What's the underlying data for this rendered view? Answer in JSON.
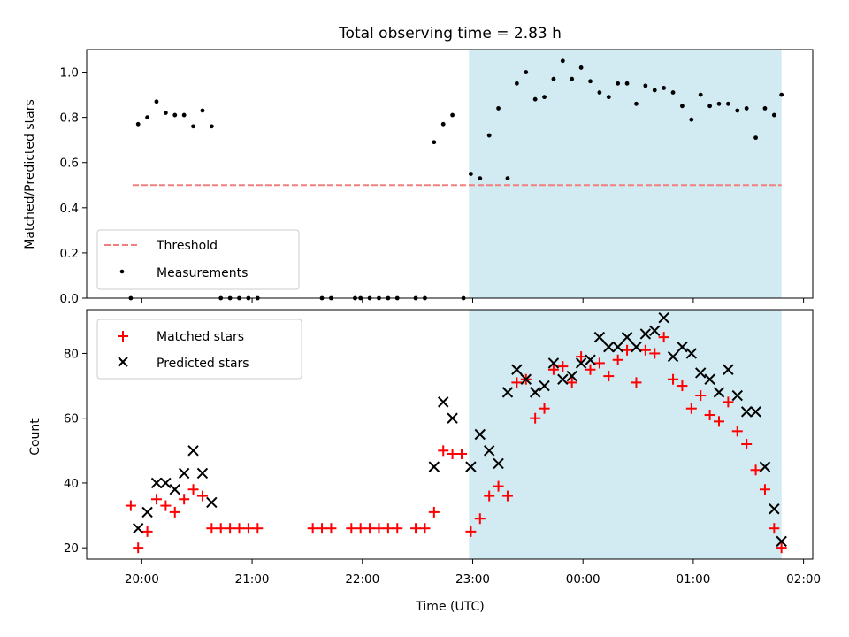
{
  "chart_data": [
    {
      "type": "scatter",
      "title": "Total observing time = 2.83 h",
      "xlabel": "",
      "ylabel": "Matched/Predicted stars",
      "ylim": [
        0,
        1.1
      ],
      "yticks": [
        0.0,
        0.2,
        0.4,
        0.6,
        0.8,
        1.0
      ],
      "ytick_labels": [
        "0.0",
        "0.2",
        "0.4",
        "0.6",
        "0.8",
        "1.0"
      ],
      "grid": false,
      "legend_position": "lower-left",
      "shaded_interval": {
        "start": "22:58",
        "end": "01:48",
        "color": "#add8e6"
      },
      "threshold": {
        "name": "Threshold",
        "value": 0.5,
        "x_start": "19:55",
        "x_end": "01:48",
        "style": "dashed",
        "color": "#f08080"
      },
      "series": [
        {
          "name": "Measurements",
          "color": "#000000",
          "marker": "dot",
          "points": [
            [
              "19:54",
              0.0
            ],
            [
              "19:58",
              0.77
            ],
            [
              "20:03",
              0.8
            ],
            [
              "20:08",
              0.87
            ],
            [
              "20:13",
              0.82
            ],
            [
              "20:18",
              0.81
            ],
            [
              "20:23",
              0.81
            ],
            [
              "20:28",
              0.76
            ],
            [
              "20:33",
              0.83
            ],
            [
              "20:38",
              0.76
            ],
            [
              "20:43",
              0.0
            ],
            [
              "20:48",
              0.0
            ],
            [
              "20:53",
              0.0
            ],
            [
              "20:58",
              0.0
            ],
            [
              "21:03",
              0.0
            ],
            [
              "21:38",
              0.0
            ],
            [
              "21:43",
              0.0
            ],
            [
              "21:56",
              0.0
            ],
            [
              "21:59",
              0.0
            ],
            [
              "22:04",
              0.0
            ],
            [
              "22:09",
              0.0
            ],
            [
              "22:14",
              0.0
            ],
            [
              "22:19",
              0.0
            ],
            [
              "22:29",
              0.0
            ],
            [
              "22:34",
              0.0
            ],
            [
              "22:39",
              0.69
            ],
            [
              "22:44",
              0.77
            ],
            [
              "22:49",
              0.81
            ],
            [
              "22:55",
              0.0
            ],
            [
              "22:59",
              0.55
            ],
            [
              "23:04",
              0.53
            ],
            [
              "23:09",
              0.72
            ],
            [
              "23:14",
              0.84
            ],
            [
              "23:19",
              0.53
            ],
            [
              "23:24",
              0.95
            ],
            [
              "23:29",
              1.0
            ],
            [
              "23:34",
              0.88
            ],
            [
              "23:39",
              0.89
            ],
            [
              "23:44",
              0.97
            ],
            [
              "23:49",
              1.05
            ],
            [
              "23:54",
              0.97
            ],
            [
              "23:59",
              1.02
            ],
            [
              "00:04",
              0.96
            ],
            [
              "00:09",
              0.91
            ],
            [
              "00:14",
              0.89
            ],
            [
              "00:19",
              0.95
            ],
            [
              "00:24",
              0.95
            ],
            [
              "00:29",
              0.86
            ],
            [
              "00:34",
              0.94
            ],
            [
              "00:39",
              0.92
            ],
            [
              "00:44",
              0.93
            ],
            [
              "00:49",
              0.91
            ],
            [
              "00:54",
              0.85
            ],
            [
              "00:59",
              0.79
            ],
            [
              "01:04",
              0.9
            ],
            [
              "01:09",
              0.85
            ],
            [
              "01:14",
              0.86
            ],
            [
              "01:19",
              0.86
            ],
            [
              "01:24",
              0.83
            ],
            [
              "01:29",
              0.84
            ],
            [
              "01:34",
              0.71
            ],
            [
              "01:39",
              0.84
            ],
            [
              "01:44",
              0.81
            ],
            [
              "01:48",
              0.9
            ]
          ]
        }
      ]
    },
    {
      "type": "scatter",
      "title": "",
      "xlabel": "Time (UTC)",
      "ylabel": "Count",
      "ylim": [
        16.5,
        93.5
      ],
      "yticks": [
        20,
        40,
        60,
        80
      ],
      "ytick_labels": [
        "20",
        "40",
        "60",
        "80"
      ],
      "xticks": [
        "20:00",
        "21:00",
        "22:00",
        "23:00",
        "00:00",
        "01:00",
        "02:00"
      ],
      "xlim": [
        "19:30",
        "02:05"
      ],
      "grid": false,
      "legend_position": "upper-left",
      "shaded_interval": {
        "start": "22:58",
        "end": "01:48",
        "color": "#add8e6"
      },
      "series": [
        {
          "name": "Matched stars",
          "color": "#ff0000",
          "marker": "plus",
          "points": [
            [
              "19:54",
              33
            ],
            [
              "19:58",
              20
            ],
            [
              "20:03",
              25
            ],
            [
              "20:08",
              35
            ],
            [
              "20:13",
              33
            ],
            [
              "20:18",
              31
            ],
            [
              "20:23",
              35
            ],
            [
              "20:28",
              38
            ],
            [
              "20:33",
              36
            ],
            [
              "20:38",
              26
            ],
            [
              "20:43",
              26
            ],
            [
              "20:48",
              26
            ],
            [
              "20:53",
              26
            ],
            [
              "20:58",
              26
            ],
            [
              "21:03",
              26
            ],
            [
              "21:33",
              26
            ],
            [
              "21:38",
              26
            ],
            [
              "21:43",
              26
            ],
            [
              "21:54",
              26
            ],
            [
              "21:59",
              26
            ],
            [
              "22:04",
              26
            ],
            [
              "22:09",
              26
            ],
            [
              "22:14",
              26
            ],
            [
              "22:19",
              26
            ],
            [
              "22:29",
              26
            ],
            [
              "22:34",
              26
            ],
            [
              "22:39",
              31
            ],
            [
              "22:44",
              50
            ],
            [
              "22:49",
              49
            ],
            [
              "22:54",
              49
            ],
            [
              "22:59",
              25
            ],
            [
              "23:04",
              29
            ],
            [
              "23:09",
              36
            ],
            [
              "23:14",
              39
            ],
            [
              "23:19",
              36
            ],
            [
              "23:24",
              71
            ],
            [
              "23:29",
              72
            ],
            [
              "23:34",
              60
            ],
            [
              "23:39",
              63
            ],
            [
              "23:44",
              75
            ],
            [
              "23:49",
              76
            ],
            [
              "23:54",
              71
            ],
            [
              "23:59",
              79
            ],
            [
              "00:04",
              75
            ],
            [
              "00:09",
              77
            ],
            [
              "00:14",
              73
            ],
            [
              "00:19",
              78
            ],
            [
              "00:24",
              81
            ],
            [
              "00:29",
              71
            ],
            [
              "00:34",
              81
            ],
            [
              "00:39",
              80
            ],
            [
              "00:44",
              85
            ],
            [
              "00:49",
              72
            ],
            [
              "00:54",
              70
            ],
            [
              "00:59",
              63
            ],
            [
              "01:04",
              67
            ],
            [
              "01:09",
              61
            ],
            [
              "01:14",
              59
            ],
            [
              "01:19",
              65
            ],
            [
              "01:24",
              56
            ],
            [
              "01:29",
              52
            ],
            [
              "01:34",
              44
            ],
            [
              "01:39",
              38
            ],
            [
              "01:44",
              26
            ],
            [
              "01:48",
              20
            ]
          ]
        },
        {
          "name": "Predicted stars",
          "color": "#000000",
          "marker": "x",
          "points": [
            [
              "19:58",
              26
            ],
            [
              "20:03",
              31
            ],
            [
              "20:08",
              40
            ],
            [
              "20:13",
              40
            ],
            [
              "20:18",
              38
            ],
            [
              "20:23",
              43
            ],
            [
              "20:28",
              50
            ],
            [
              "20:33",
              43
            ],
            [
              "20:38",
              34
            ],
            [
              "22:39",
              45
            ],
            [
              "22:44",
              65
            ],
            [
              "22:49",
              60
            ],
            [
              "22:59",
              45
            ],
            [
              "23:04",
              55
            ],
            [
              "23:09",
              50
            ],
            [
              "23:14",
              46
            ],
            [
              "23:19",
              68
            ],
            [
              "23:24",
              75
            ],
            [
              "23:29",
              72
            ],
            [
              "23:34",
              68
            ],
            [
              "23:39",
              70
            ],
            [
              "23:44",
              77
            ],
            [
              "23:49",
              72
            ],
            [
              "23:54",
              73
            ],
            [
              "23:59",
              77
            ],
            [
              "00:04",
              78
            ],
            [
              "00:09",
              85
            ],
            [
              "00:14",
              82
            ],
            [
              "00:19",
              82
            ],
            [
              "00:24",
              85
            ],
            [
              "00:29",
              82
            ],
            [
              "00:34",
              86
            ],
            [
              "00:39",
              87
            ],
            [
              "00:44",
              91
            ],
            [
              "00:49",
              79
            ],
            [
              "00:54",
              82
            ],
            [
              "00:59",
              80
            ],
            [
              "01:04",
              74
            ],
            [
              "01:09",
              72
            ],
            [
              "01:14",
              68
            ],
            [
              "01:19",
              75
            ],
            [
              "01:24",
              67
            ],
            [
              "01:29",
              62
            ],
            [
              "01:34",
              62
            ],
            [
              "01:39",
              45
            ],
            [
              "01:44",
              32
            ],
            [
              "01:48",
              22
            ]
          ]
        }
      ]
    }
  ]
}
